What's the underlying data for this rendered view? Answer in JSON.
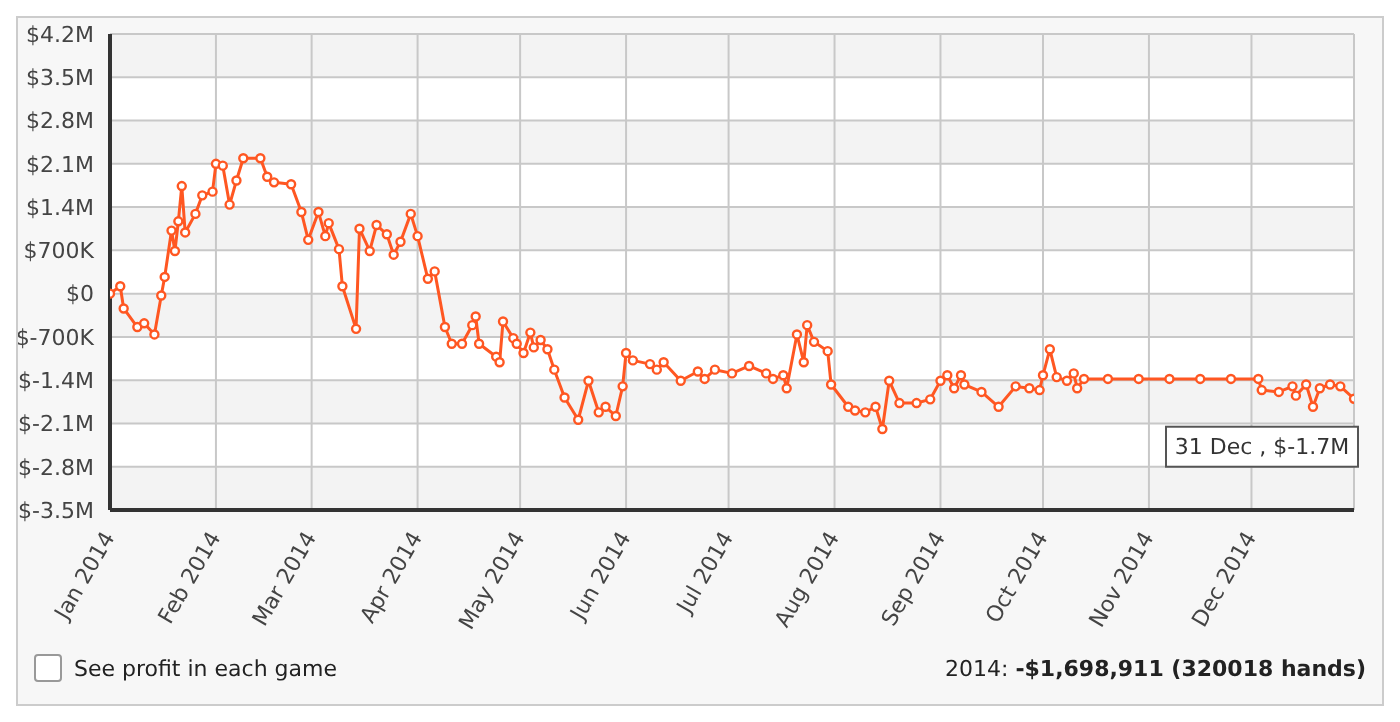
{
  "chart_data": {
    "type": "line",
    "x": [
      "2014-01-01",
      "2014-01-04",
      "2014-01-05",
      "2014-01-09",
      "2014-01-11",
      "2014-01-14",
      "2014-01-16",
      "2014-01-17",
      "2014-01-19",
      "2014-01-20",
      "2014-01-21",
      "2014-01-22",
      "2014-01-23",
      "2014-01-26",
      "2014-01-28",
      "2014-01-31",
      "2014-02-01",
      "2014-02-03",
      "2014-02-05",
      "2014-02-07",
      "2014-02-09",
      "2014-02-14",
      "2014-02-16",
      "2014-02-18",
      "2014-02-23",
      "2014-02-26",
      "2014-02-28",
      "2014-03-03",
      "2014-03-05",
      "2014-03-06",
      "2014-03-09",
      "2014-03-10",
      "2014-03-14",
      "2014-03-15",
      "2014-03-18",
      "2014-03-20",
      "2014-03-23",
      "2014-03-25",
      "2014-03-27",
      "2014-03-30",
      "2014-04-01",
      "2014-04-04",
      "2014-04-06",
      "2014-04-09",
      "2014-04-11",
      "2014-04-14",
      "2014-04-17",
      "2014-04-18",
      "2014-04-19",
      "2014-04-24",
      "2014-04-25",
      "2014-04-26",
      "2014-04-29",
      "2014-04-30",
      "2014-05-02",
      "2014-05-04",
      "2014-05-05",
      "2014-05-07",
      "2014-05-09",
      "2014-05-11",
      "2014-05-14",
      "2014-05-18",
      "2014-05-21",
      "2014-05-24",
      "2014-05-26",
      "2014-05-29",
      "2014-05-31",
      "2014-06-01",
      "2014-06-03",
      "2014-06-08",
      "2014-06-10",
      "2014-06-12",
      "2014-06-17",
      "2014-06-22",
      "2014-06-24",
      "2014-06-27",
      "2014-07-02",
      "2014-07-07",
      "2014-07-12",
      "2014-07-14",
      "2014-07-17",
      "2014-07-18",
      "2014-07-21",
      "2014-07-23",
      "2014-07-24",
      "2014-07-26",
      "2014-07-30",
      "2014-07-31",
      "2014-08-05",
      "2014-08-07",
      "2014-08-10",
      "2014-08-13",
      "2014-08-15",
      "2014-08-17",
      "2014-08-20",
      "2014-08-25",
      "2014-08-29",
      "2014-09-01",
      "2014-09-03",
      "2014-09-05",
      "2014-09-07",
      "2014-09-08",
      "2014-09-13",
      "2014-09-18",
      "2014-09-23",
      "2014-09-27",
      "2014-09-30",
      "2014-10-01",
      "2014-10-03",
      "2014-10-05",
      "2014-10-08",
      "2014-10-10",
      "2014-10-11",
      "2014-10-13",
      "2014-10-20",
      "2014-10-29",
      "2014-11-07",
      "2014-11-16",
      "2014-11-25",
      "2014-12-03",
      "2014-12-04",
      "2014-12-09",
      "2014-12-13",
      "2014-12-14",
      "2014-12-17",
      "2014-12-19",
      "2014-12-21",
      "2014-12-24",
      "2014-12-27",
      "2014-12-31"
    ],
    "series": [
      {
        "color": "#ff5722",
        "values": [
          0,
          120000,
          -240000,
          -540000,
          -480000,
          -660000,
          -30000,
          270000,
          1020000,
          690000,
          1170000,
          1740000,
          990000,
          1290000,
          1590000,
          1650000,
          2100000,
          2070000,
          1440000,
          1830000,
          2190000,
          2190000,
          1890000,
          1800000,
          1770000,
          1320000,
          870000,
          1320000,
          930000,
          1140000,
          720000,
          120000,
          -570000,
          1050000,
          690000,
          1110000,
          960000,
          630000,
          840000,
          1290000,
          930000,
          240000,
          360000,
          -540000,
          -810000,
          -810000,
          -510000,
          -370000,
          -810000,
          -1020000,
          -1110000,
          -450000,
          -720000,
          -810000,
          -960000,
          -630000,
          -870000,
          -750000,
          -900000,
          -1230000,
          -1680000,
          -2040000,
          -1410000,
          -1920000,
          -1830000,
          -1980000,
          -1500000,
          -960000,
          -1080000,
          -1140000,
          -1230000,
          -1110000,
          -1410000,
          -1260000,
          -1380000,
          -1230000,
          -1290000,
          -1170000,
          -1290000,
          -1380000,
          -1320000,
          -1530000,
          -660000,
          -1110000,
          -510000,
          -780000,
          -930000,
          -1470000,
          -1830000,
          -1890000,
          -1920000,
          -1830000,
          -2190000,
          -1410000,
          -1770000,
          -1770000,
          -1710000,
          -1410000,
          -1320000,
          -1530000,
          -1320000,
          -1470000,
          -1590000,
          -1830000,
          -1500000,
          -1530000,
          -1560000,
          -1320000,
          -900000,
          -1350000,
          -1410000,
          -1290000,
          -1530000,
          -1380000,
          -1380000,
          -1380000,
          -1380000,
          -1380000,
          -1380000,
          -1380000,
          -1560000,
          -1590000,
          -1500000,
          -1650000,
          -1470000,
          -1830000,
          -1530000,
          -1470000,
          -1500000,
          -1700000
        ]
      }
    ],
    "xlim": [
      "2014-01-01",
      "2014-12-31"
    ],
    "xticks": [
      {
        "value": "2014-01-01",
        "label": "Jan 2014"
      },
      {
        "value": "2014-02-01",
        "label": "Feb 2014"
      },
      {
        "value": "2014-03-01",
        "label": "Mar 2014"
      },
      {
        "value": "2014-04-01",
        "label": "Apr 2014"
      },
      {
        "value": "2014-05-01",
        "label": "May 2014"
      },
      {
        "value": "2014-06-01",
        "label": "Jun 2014"
      },
      {
        "value": "2014-07-01",
        "label": "Jul 2014"
      },
      {
        "value": "2014-08-01",
        "label": "Aug 2014"
      },
      {
        "value": "2014-09-01",
        "label": "Sep 2014"
      },
      {
        "value": "2014-10-01",
        "label": "Oct 2014"
      },
      {
        "value": "2014-11-01",
        "label": "Nov 2014"
      },
      {
        "value": "2014-12-01",
        "label": "Dec 2014"
      }
    ],
    "ylim": [
      -3500000,
      4200000
    ],
    "yticks": [
      {
        "value": -3500000,
        "label": "$-3.5M"
      },
      {
        "value": -2800000,
        "label": "$-2.8M"
      },
      {
        "value": -2100000,
        "label": "$-2.1M"
      },
      {
        "value": -1400000,
        "label": "$-1.4M"
      },
      {
        "value": -700000,
        "label": "$-700K"
      },
      {
        "value": 0,
        "label": "$0"
      },
      {
        "value": 700000,
        "label": "$700K"
      },
      {
        "value": 1400000,
        "label": "$1.4M"
      },
      {
        "value": 2100000,
        "label": "$2.1M"
      },
      {
        "value": 2800000,
        "label": "$2.8M"
      },
      {
        "value": 3500000,
        "label": "$3.5M"
      },
      {
        "value": 4200000,
        "label": "$4.2M"
      }
    ],
    "grid": true,
    "marker": "circle",
    "line_style": "solid",
    "legend": false,
    "annotations": [
      {
        "text": "31 Dec , $-1.7M",
        "x": "2014-12-31",
        "y": -1700000
      },
      "See profit in each game",
      "2014: -$1,698,911 (320018 hands)"
    ]
  }
}
